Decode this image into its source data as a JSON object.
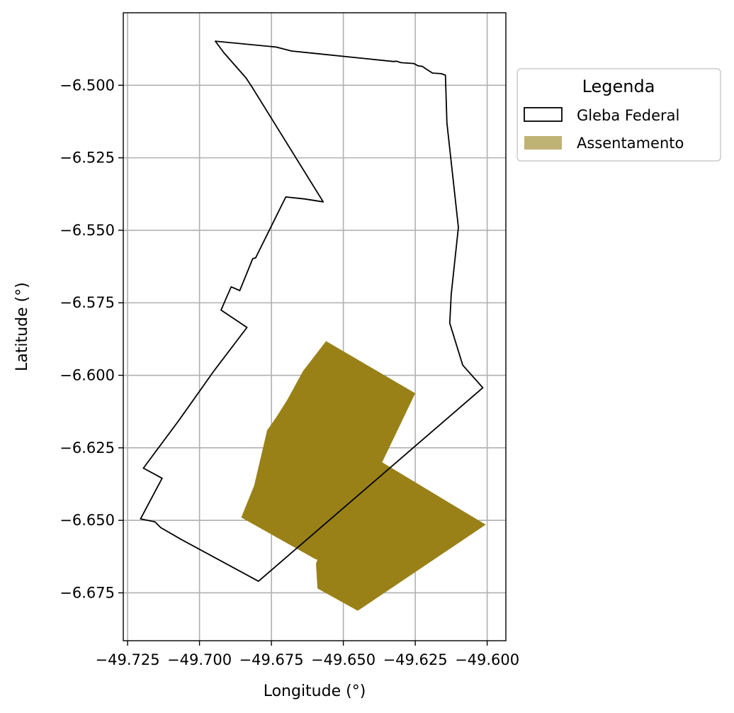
{
  "chart_data": {
    "type": "map",
    "xlabel": "Longitude (°)",
    "ylabel": "Latitude (°)",
    "xlim": [
      -49.7265,
      -49.5935
    ],
    "ylim": [
      -6.6915,
      -6.475
    ],
    "grid": true,
    "x_ticks": [
      -49.725,
      -49.7,
      -49.675,
      -49.65,
      -49.625,
      -49.6
    ],
    "x_tick_labels": [
      "−49.725",
      "−49.700",
      "−49.675",
      "−49.650",
      "−49.625",
      "−49.600"
    ],
    "y_ticks": [
      -6.5,
      -6.525,
      -6.55,
      -6.575,
      -6.6,
      -6.625,
      -6.65,
      -6.675
    ],
    "y_tick_labels": [
      "−6.500",
      "−6.525",
      "−6.550",
      "−6.575",
      "−6.600",
      "−6.625",
      "−6.650",
      "−6.675"
    ],
    "legend": {
      "title": "Legenda",
      "placement": "outside-upper-right",
      "items": [
        {
          "label": "Gleba Federal",
          "style": "outline"
        },
        {
          "label": "Assentamento",
          "style": "fill"
        }
      ]
    },
    "layers": [
      {
        "name": "Gleba Federal",
        "fill": "none",
        "stroke": "#000000",
        "coordinates": [
          [
            -49.6945,
            -6.4848
          ],
          [
            -49.6915,
            -6.4888
          ],
          [
            -49.6838,
            -6.4975
          ],
          [
            -49.6815,
            -6.501
          ],
          [
            -49.657,
            -6.5402
          ],
          [
            -49.6635,
            -6.5392
          ],
          [
            -49.67,
            -6.5385
          ],
          [
            -49.679,
            -6.5565
          ],
          [
            -49.6805,
            -6.5595
          ],
          [
            -49.6815,
            -6.5598
          ],
          [
            -49.686,
            -6.5708
          ],
          [
            -49.689,
            -6.5695
          ],
          [
            -49.6925,
            -6.5775
          ],
          [
            -49.6835,
            -6.5835
          ],
          [
            -49.695,
            -6.5985
          ],
          [
            -49.705,
            -6.6125
          ],
          [
            -49.7075,
            -6.616
          ],
          [
            -49.7195,
            -6.632
          ],
          [
            -49.713,
            -6.6355
          ],
          [
            -49.7205,
            -6.6495
          ],
          [
            -49.7155,
            -6.6505
          ],
          [
            -49.7135,
            -6.6525
          ],
          [
            -49.7065,
            -6.6565
          ],
          [
            -49.6795,
            -6.671
          ],
          [
            -49.6015,
            -6.6043
          ],
          [
            -49.6085,
            -6.5965
          ],
          [
            -49.613,
            -6.582
          ],
          [
            -49.6125,
            -6.572
          ],
          [
            -49.61,
            -6.549
          ],
          [
            -49.614,
            -6.513
          ],
          [
            -49.6145,
            -6.4965
          ],
          [
            -49.616,
            -6.496
          ],
          [
            -49.619,
            -6.4958
          ],
          [
            -49.6215,
            -6.4942
          ],
          [
            -49.6225,
            -6.4935
          ],
          [
            -49.624,
            -6.4933
          ],
          [
            -49.6255,
            -6.4925
          ],
          [
            -49.63,
            -6.4922
          ],
          [
            -49.6315,
            -6.4917
          ],
          [
            -49.6325,
            -6.4918
          ],
          [
            -49.66,
            -6.489
          ],
          [
            -49.66,
            -6.489
          ],
          [
            -49.668,
            -6.4882
          ],
          [
            -49.6735,
            -6.4868
          ],
          [
            -49.6945,
            -6.4848
          ]
        ]
      },
      {
        "name": "Assentamento",
        "fill": "#998118",
        "stroke": "none",
        "coordinates": [
          [
            -49.656,
            -6.5882
          ],
          [
            -49.625,
            -6.6062
          ],
          [
            -49.6365,
            -6.63
          ],
          [
            -49.6005,
            -6.6515
          ],
          [
            -49.645,
            -6.6812
          ],
          [
            -49.659,
            -6.6735
          ],
          [
            -49.6595,
            -6.665
          ],
          [
            -49.659,
            -6.6635
          ],
          [
            -49.6595,
            -6.6635
          ],
          [
            -49.6855,
            -6.649
          ],
          [
            -49.681,
            -6.638
          ],
          [
            -49.6765,
            -6.619
          ],
          [
            -49.673,
            -6.614
          ],
          [
            -49.6695,
            -6.6085
          ],
          [
            -49.664,
            -6.5985
          ],
          [
            -49.656,
            -6.5882
          ]
        ]
      }
    ]
  }
}
